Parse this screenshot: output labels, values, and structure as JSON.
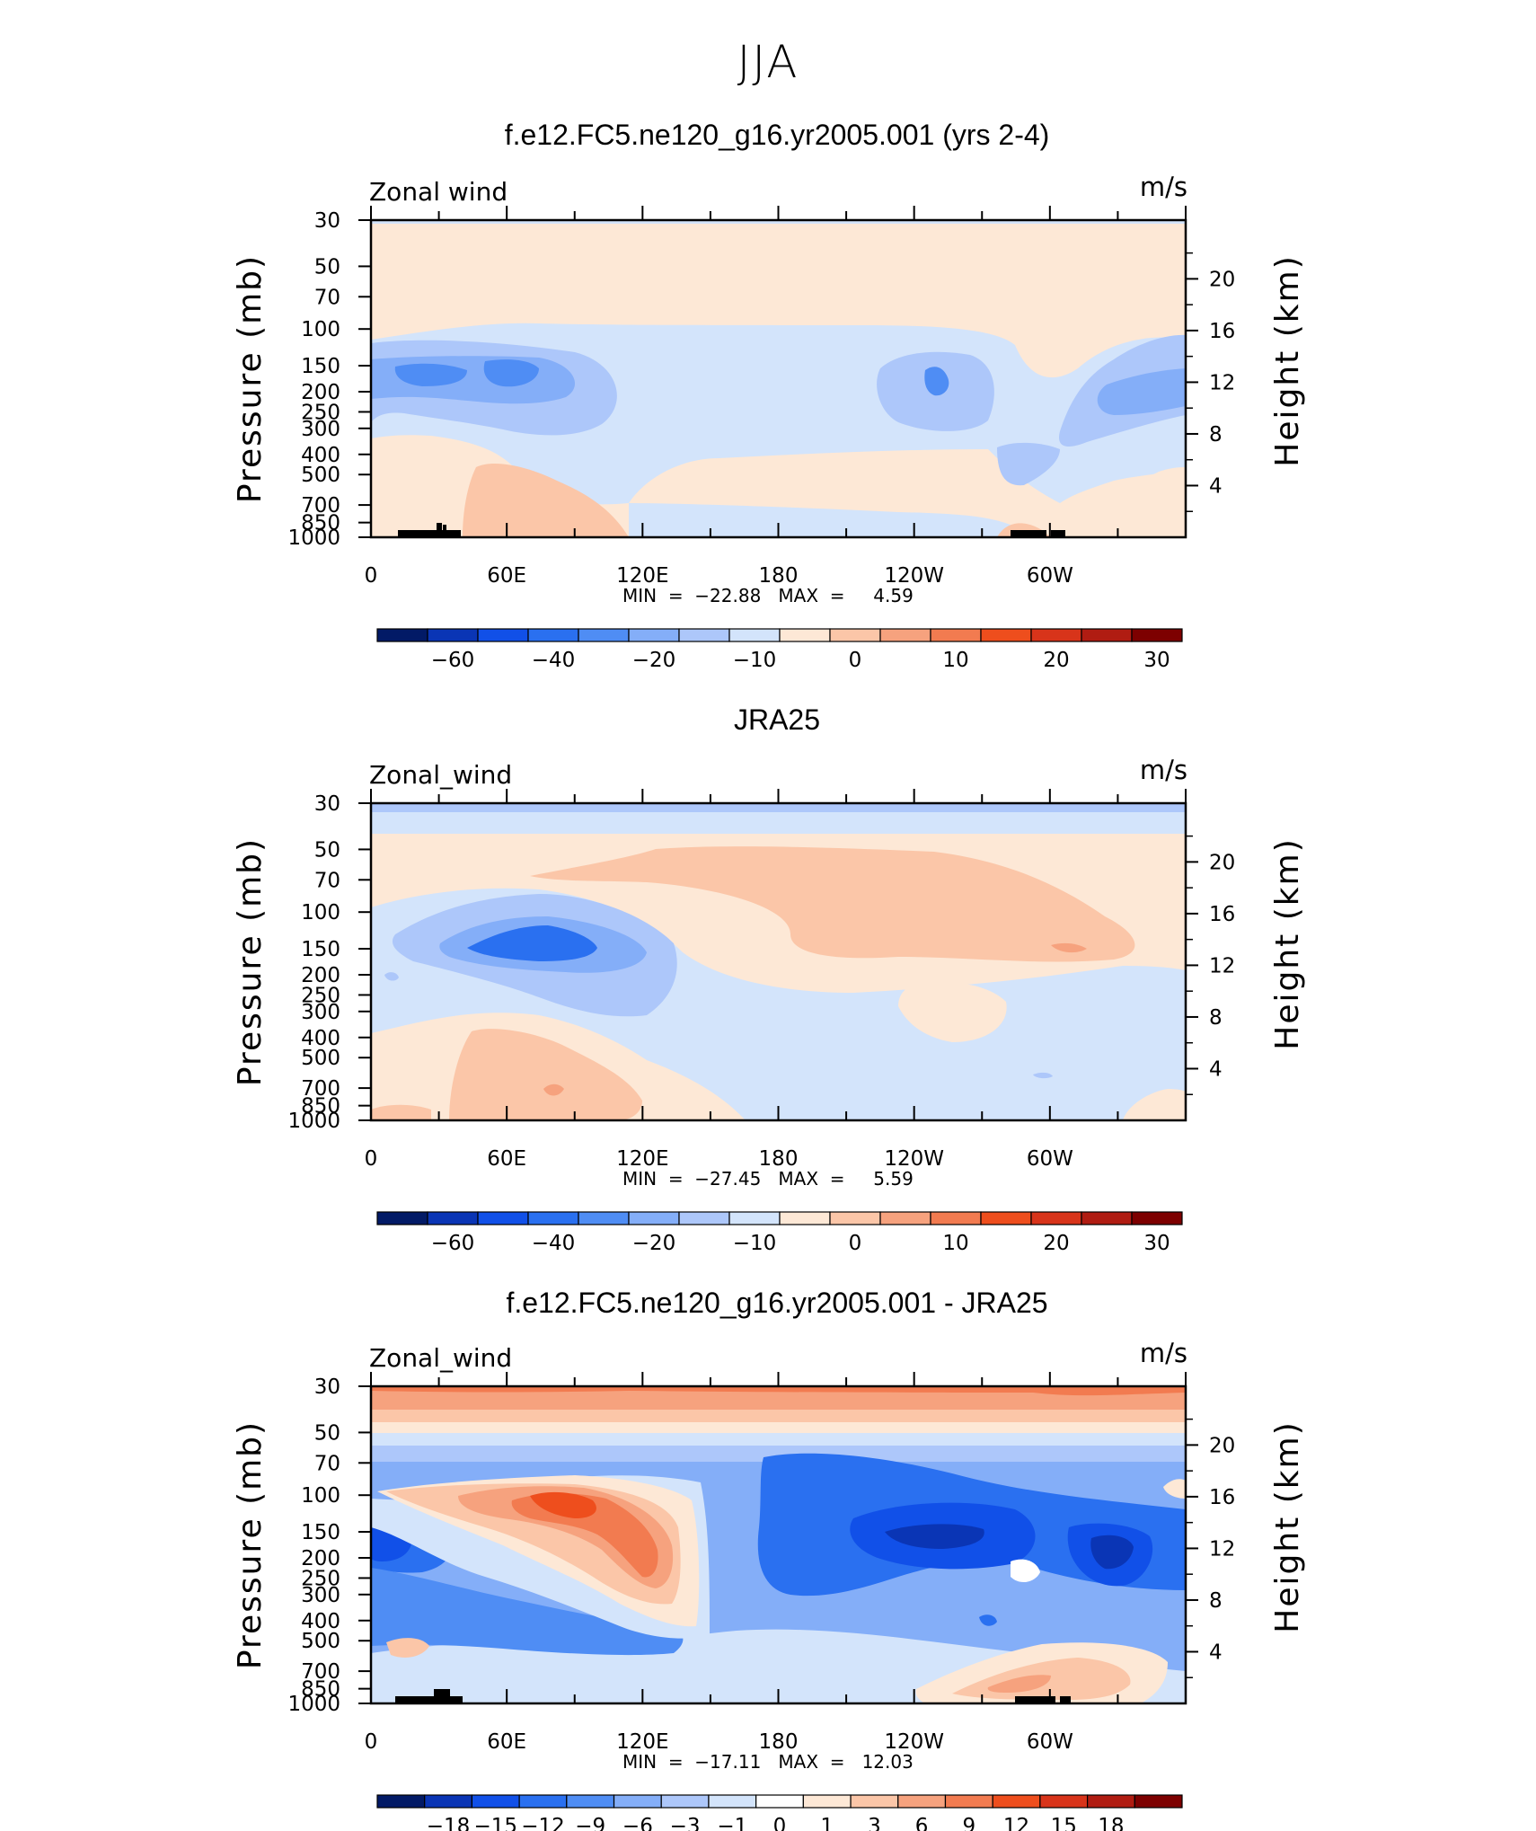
{
  "main_title": "JJA",
  "colors": {
    "full_palette": [
      "#021a66",
      "#0a35b5",
      "#1150e8",
      "#2a70f0",
      "#4f8df4",
      "#84aef8",
      "#adc7fa",
      "#d3e4fb",
      "#fde8d6",
      "#fbc6a8",
      "#f6a27e",
      "#f27b50",
      "#ee4e1d",
      "#d8341a",
      "#b01c12",
      "#7d0000"
    ],
    "diff_palette": [
      "#021a66",
      "#0a35b5",
      "#1150e8",
      "#2a70f0",
      "#4f8df4",
      "#84aef8",
      "#adc7fa",
      "#d3e4fb",
      "#ffffff",
      "#fde8d6",
      "#fbc6a8",
      "#f6a27e",
      "#f27b50",
      "#ee4e1d",
      "#d8341a",
      "#b01c12",
      "#7d0000"
    ],
    "topography": "#000000"
  },
  "panels": [
    {
      "title": "f.e12.FC5.ne120_g16.yr2005.001 (yrs 2-4)",
      "left_label": "Zonal wind",
      "right_label": "m/s",
      "y_axis_label": "Pressure (mb)",
      "y_right_axis_label": "Height (km)",
      "stats": "MIN  =  −22.88   MAX  =     4.59"
    },
    {
      "title": "JRA25",
      "left_label": "Zonal_wind",
      "right_label": "m/s",
      "y_axis_label": "Pressure (mb)",
      "y_right_axis_label": "Height (km)",
      "stats": "MIN  =  −27.45   MAX  =     5.59"
    },
    {
      "title": "f.e12.FC5.ne120_g16.yr2005.001 - JRA25",
      "left_label": "Zonal_wind",
      "right_label": "m/s",
      "y_axis_label": "Pressure (mb)",
      "y_right_axis_label": "Height (km)",
      "stats": "MIN  =  −17.11   MAX  =   12.03"
    }
  ],
  "chart_data": [
    {
      "type": "heatmap",
      "title": "f.e12.FC5.ne120_g16.yr2005.001 (yrs 2-4)",
      "variable": "Zonal wind",
      "units": "m/s",
      "xlabel": "",
      "ylabel": "Pressure (mb)",
      "ylabel_right": "Height (km)",
      "x_ticks": [
        "0",
        "60E",
        "120E",
        "180",
        "120W",
        "60W"
      ],
      "y_ticks": [
        "30",
        "50",
        "70",
        "100",
        "150",
        "200",
        "250",
        "300",
        "400",
        "500",
        "700",
        "850",
        "1000"
      ],
      "y_ticks_right": [
        "20",
        "16",
        "12",
        "8",
        "4"
      ],
      "ylim": [
        1000,
        30
      ],
      "log_scale_y": true,
      "colorbar_labels": [
        "−60",
        "−40",
        "−20",
        "−10",
        "0",
        "10",
        "20",
        "30"
      ],
      "min": -22.88,
      "max": 4.59
    },
    {
      "type": "heatmap",
      "title": "JRA25",
      "variable": "Zonal_wind",
      "units": "m/s",
      "xlabel": "",
      "ylabel": "Pressure (mb)",
      "ylabel_right": "Height (km)",
      "x_ticks": [
        "0",
        "60E",
        "120E",
        "180",
        "120W",
        "60W"
      ],
      "y_ticks": [
        "30",
        "50",
        "70",
        "100",
        "150",
        "200",
        "250",
        "300",
        "400",
        "500",
        "700",
        "850",
        "1000"
      ],
      "y_ticks_right": [
        "20",
        "16",
        "12",
        "8",
        "4"
      ],
      "ylim": [
        1000,
        30
      ],
      "log_scale_y": true,
      "colorbar_labels": [
        "−60",
        "−40",
        "−20",
        "−10",
        "0",
        "10",
        "20",
        "30"
      ],
      "min": -27.45,
      "max": 5.59
    },
    {
      "type": "heatmap",
      "title": "f.e12.FC5.ne120_g16.yr2005.001 - JRA25",
      "variable": "Zonal_wind",
      "units": "m/s",
      "xlabel": "",
      "ylabel": "Pressure (mb)",
      "ylabel_right": "Height (km)",
      "x_ticks": [
        "0",
        "60E",
        "120E",
        "180",
        "120W",
        "60W"
      ],
      "y_ticks": [
        "30",
        "50",
        "70",
        "100",
        "150",
        "200",
        "250",
        "300",
        "400",
        "500",
        "700",
        "850",
        "1000"
      ],
      "y_ticks_right": [
        "20",
        "16",
        "12",
        "8",
        "4"
      ],
      "ylim": [
        1000,
        30
      ],
      "log_scale_y": true,
      "colorbar_labels": [
        "−18",
        "−15",
        "−12",
        "−9",
        "−6",
        "−3",
        "−1",
        "0",
        "1",
        "3",
        "6",
        "9",
        "12",
        "15",
        "18"
      ],
      "min": -17.11,
      "max": 12.03
    }
  ]
}
